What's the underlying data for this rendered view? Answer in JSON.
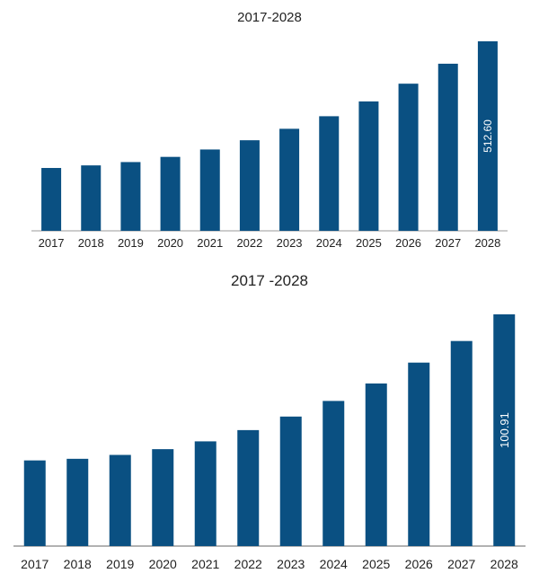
{
  "bar_color": "#0a5082",
  "axis_color": "#999999",
  "chart_data": [
    {
      "type": "bar",
      "title": "2017-2028",
      "categories": [
        "2017",
        "2018",
        "2019",
        "2020",
        "2021",
        "2022",
        "2023",
        "2024",
        "2025",
        "2026",
        "2027",
        "2028"
      ],
      "values": [
        170,
        177,
        186,
        200,
        220,
        245,
        276,
        310,
        350,
        398,
        452,
        512.6
      ],
      "value_labels": [
        "",
        "",
        "",
        "",
        "",
        "",
        "",
        "",
        "",
        "",
        "",
        "512.60"
      ],
      "xlabel": "",
      "ylabel": "",
      "ylim": [
        0,
        512.6
      ],
      "grid": false,
      "legend": "none"
    },
    {
      "type": "bar",
      "title": "2017 -2028",
      "categories": [
        "2017",
        "2018",
        "2019",
        "2020",
        "2021",
        "2022",
        "2023",
        "2024",
        "2025",
        "2026",
        "2027",
        "2028"
      ],
      "values": [
        37.3,
        38.0,
        39.7,
        42.2,
        45.6,
        50.5,
        56.4,
        63.2,
        70.8,
        79.9,
        89.3,
        100.91
      ],
      "value_labels": [
        "",
        "",
        "",
        "",
        "",
        "",
        "",
        "",
        "",
        "",
        "",
        "100.91"
      ],
      "xlabel": "",
      "ylabel": "",
      "ylim": [
        0,
        100.91
      ],
      "grid": false,
      "legend": "none"
    }
  ]
}
